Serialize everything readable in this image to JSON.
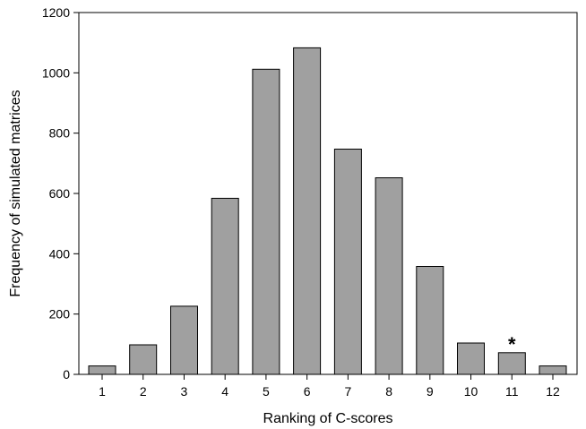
{
  "chart_data": {
    "type": "bar",
    "categories": [
      "1",
      "2",
      "3",
      "4",
      "5",
      "6",
      "7",
      "8",
      "9",
      "10",
      "11",
      "12"
    ],
    "values": [
      28,
      98,
      226,
      584,
      1012,
      1083,
      747,
      652,
      358,
      104,
      72,
      28
    ],
    "xlabel": "Ranking of C-scores",
    "ylabel": "Frequency of simulated matrices",
    "ylim": [
      0,
      1200
    ],
    "yticks": [
      0,
      200,
      400,
      600,
      800,
      1000,
      1200
    ],
    "grid": false,
    "legend": "none",
    "annotations": [
      {
        "category": "11",
        "text": "*"
      }
    ],
    "colors": {
      "bar_fill": "#a0a0a0",
      "bar_stroke": "#000000",
      "axis": "#000000"
    }
  }
}
